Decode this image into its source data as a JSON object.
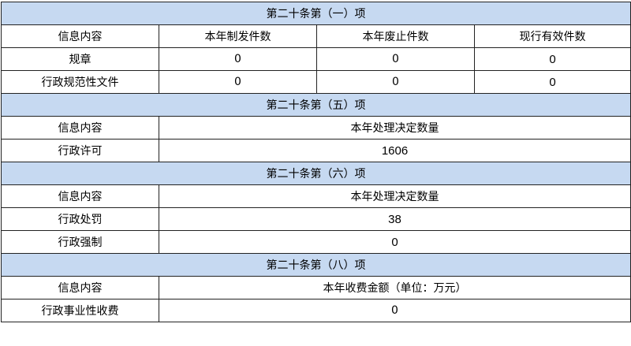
{
  "sections": [
    {
      "title": "第二十条第（一）项",
      "headers": [
        "信息内容",
        "本年制发件数",
        "本年废止件数",
        "现行有效件数"
      ],
      "rows": [
        [
          "规章",
          "0",
          "0",
          "0"
        ],
        [
          "行政规范性文件",
          "0",
          "0",
          "0"
        ]
      ]
    },
    {
      "title": "第二十条第（五）项",
      "headers": [
        "信息内容",
        "本年处理决定数量"
      ],
      "rows": [
        [
          "行政许可",
          "1606"
        ]
      ]
    },
    {
      "title": "第二十条第（六）项",
      "headers": [
        "信息内容",
        "本年处理决定数量"
      ],
      "rows": [
        [
          "行政处罚",
          "38"
        ],
        [
          "行政强制",
          "0"
        ]
      ]
    },
    {
      "title": "第二十条第（八）项",
      "headers": [
        "信息内容",
        "本年收费金额（单位：万元）"
      ],
      "rows": [
        [
          "行政事业性收费",
          "0"
        ]
      ]
    }
  ],
  "colors": {
    "section_header_bg": "#c6d9f1",
    "border": "#222222"
  }
}
